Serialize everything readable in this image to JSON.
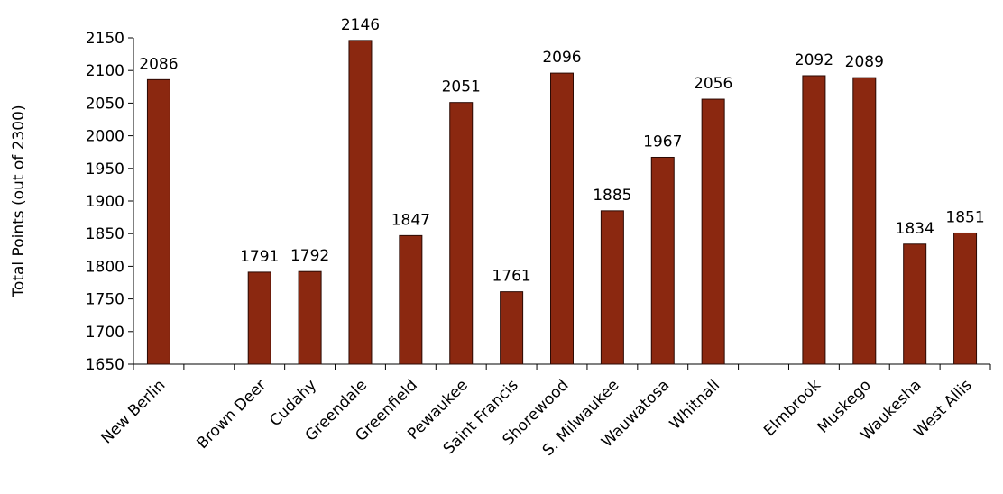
{
  "chart_data": {
    "type": "bar",
    "title": "",
    "xlabel": "",
    "ylabel": "Total Points (out of 2300)",
    "ylim": [
      1650,
      2150
    ],
    "yticks": [
      1650,
      1700,
      1750,
      1800,
      1850,
      1900,
      1950,
      2000,
      2050,
      2100,
      2150
    ],
    "grid": false,
    "legend": "none",
    "bar_color": "#8B2810",
    "categories": [
      "New Berlin",
      "",
      "Brown Deer",
      "Cudahy",
      "Greendale",
      "Greenfield",
      "Pewaukee",
      "Saint Francis",
      "Shorewood",
      "S. Milwaukee",
      "Wauwatosa",
      "Whitnall",
      "",
      "Elmbrook",
      "Muskego",
      "Waukesha",
      "West Allis"
    ],
    "values": [
      2086,
      null,
      1791,
      1792,
      2146,
      1847,
      2051,
      1761,
      2096,
      1885,
      1967,
      2056,
      null,
      2092,
      2089,
      1834,
      1851
    ]
  }
}
